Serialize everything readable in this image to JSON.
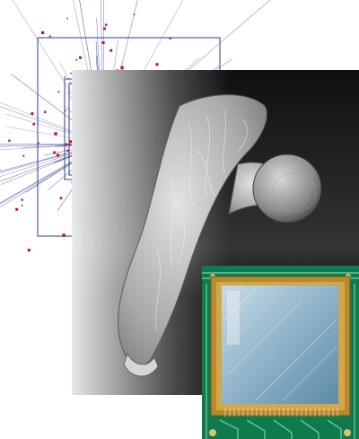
{
  "collage": {
    "track_plot": {
      "icon": "particle-track-display",
      "track_color": "#3a3f9a",
      "hit_color": "#c8102e",
      "frame_color": "#4c5fa3"
    },
    "bone_scan": {
      "icon": "femur-ct-render",
      "background_color": "#101010",
      "bone_color": "#b8b8b8"
    },
    "detector_chip": {
      "icon": "pixel-detector-sensor",
      "pcb_color": "#0e7a4e",
      "trace_color": "#79d3a2",
      "frame_color": "#b9892e",
      "sensor_color": "#8fb3c9"
    }
  }
}
